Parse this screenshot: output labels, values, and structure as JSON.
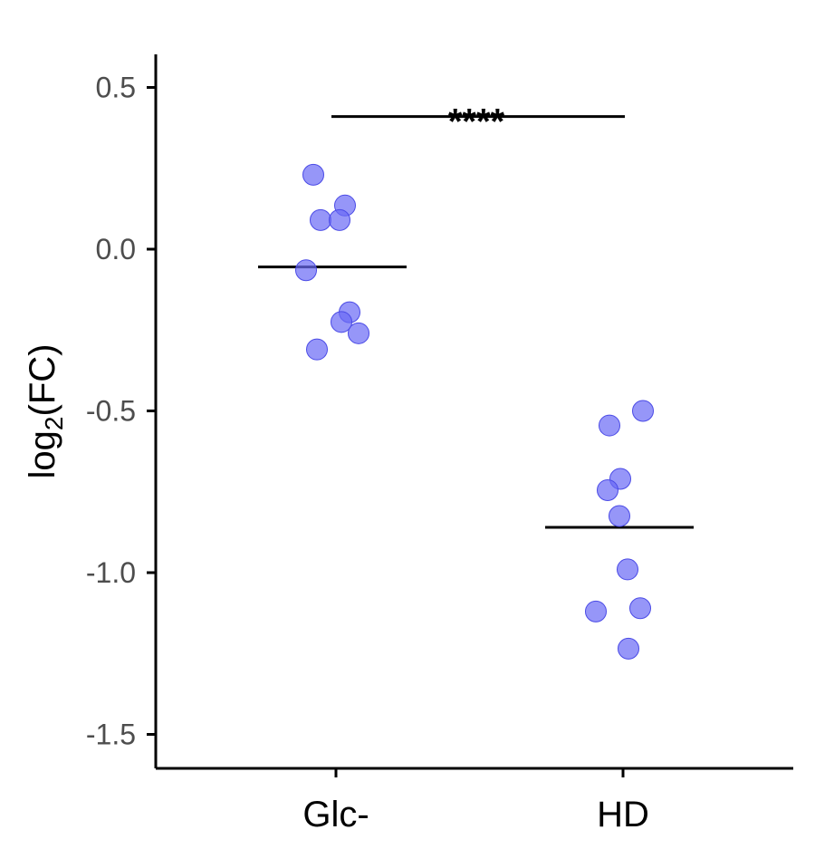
{
  "chart_data": {
    "type": "scatter",
    "title": "",
    "xlabel": "",
    "ylabel": "log2(FC)",
    "ylabel_base": "log",
    "ylabel_sub": "2",
    "ylabel_rest": "(FC)",
    "ylim": [
      -1.6,
      0.6
    ],
    "yticks": [
      -1.5,
      -1.0,
      -0.5,
      0.0,
      0.5
    ],
    "ytick_labels": [
      "-1.5",
      "-1.0",
      "-0.5",
      "0.0",
      "0.5"
    ],
    "categories": [
      "Glc-",
      "HD"
    ],
    "groups": [
      {
        "category": "Glc-",
        "mean": -0.055,
        "points": [
          0.23,
          0.135,
          0.09,
          0.09,
          -0.065,
          -0.195,
          -0.225,
          -0.26,
          -0.31
        ]
      },
      {
        "category": "HD",
        "mean": -0.86,
        "points": [
          -0.5,
          -0.545,
          -0.71,
          -0.745,
          -0.825,
          -0.99,
          -1.11,
          -1.12,
          -1.235
        ]
      }
    ],
    "significance": {
      "from": "Glc-",
      "to": "HD",
      "label": "****",
      "y": 0.41
    },
    "point_color": "#6a6af5",
    "grid": false
  }
}
